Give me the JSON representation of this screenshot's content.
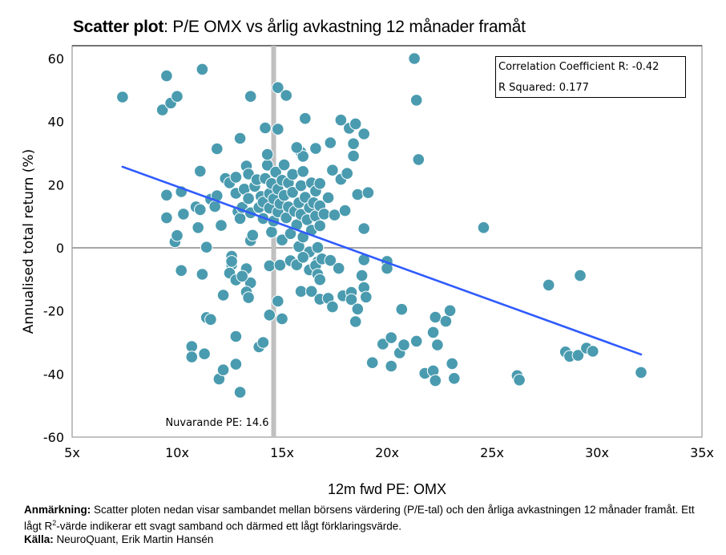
{
  "title": {
    "bold": "Scatter plot",
    "rest": ": P/E OMX vs årlig avkastning 12 månader framåt"
  },
  "stats_box": {
    "line1": "Correlation Coefficient R: -0.42",
    "line2": "R Squared: 0.177"
  },
  "notes": {
    "remark_label": "Anmärkning:",
    "remark_text_a": " Scatter ploten nedan visar sambandet mellan börsens värdering (P/E-tal) och den årliga avkastningen 12 månader framåt. Ett lågt R",
    "remark_sup": "2",
    "remark_text_b": "-värde indikerar ett svagt samband och därmed ett lågt förklaringsvärde.",
    "source_label": "Källa:",
    "source_text": " NeuroQuant, Erik Martin Hansén"
  },
  "colors": {
    "points": "#4A9BAF",
    "trendline": "#2F5BFF",
    "current_pe_line": "#C0C0C0",
    "zero_line": "#A6A6A6",
    "frame": "#A0A0A0"
  },
  "chart_data": {
    "type": "scatter",
    "title": "Scatter plot: P/E OMX vs årlig avkastning 12 månader framåt",
    "xlabel": "12m fwd PE: OMX",
    "ylabel": "Annualised total return (%)",
    "xlim": [
      5,
      35
    ],
    "ylim": [
      -60,
      60
    ],
    "x_ticks": [
      5,
      10,
      15,
      20,
      25,
      30,
      35
    ],
    "x_tick_labels": [
      "5x",
      "10x",
      "15x",
      "20x",
      "25x",
      "30x",
      "35x"
    ],
    "y_ticks": [
      60,
      40,
      20,
      0,
      -20,
      -40,
      -60
    ],
    "y_tick_labels": [
      "60",
      "40",
      "20",
      "0",
      "-20",
      "-40",
      "-60"
    ],
    "grid": false,
    "legend": "none",
    "correlation_r": -0.42,
    "r_squared": 0.177,
    "reference_line": {
      "x": 14.6,
      "label": "Nuvarande PE: 14.6"
    },
    "zero_line": {
      "y": 0
    },
    "trendline": {
      "x": [
        7.4,
        32.1
      ],
      "y": [
        25.7,
        -33.8
      ]
    },
    "points": [
      [
        7.4,
        47.8
      ],
      [
        9.3,
        43.7
      ],
      [
        9.5,
        54.5
      ],
      [
        9.7,
        45.9
      ],
      [
        10.0,
        48.0
      ],
      [
        11.2,
        56.6
      ],
      [
        13.5,
        48.0
      ],
      [
        14.8,
        50.8
      ],
      [
        15.2,
        48.3
      ],
      [
        16.1,
        41.0
      ],
      [
        17.8,
        40.5
      ],
      [
        18.2,
        37.9
      ],
      [
        18.5,
        39.3
      ],
      [
        18.9,
        36.1
      ],
      [
        18.4,
        33.0
      ],
      [
        17.3,
        33.3
      ],
      [
        16.6,
        31.5
      ],
      [
        15.9,
        30.3
      ],
      [
        16.0,
        29.0
      ],
      [
        15.7,
        31.8
      ],
      [
        14.2,
        38.0
      ],
      [
        14.8,
        37.6
      ],
      [
        13.0,
        34.7
      ],
      [
        11.9,
        31.4
      ],
      [
        9.5,
        16.7
      ],
      [
        9.5,
        9.5
      ],
      [
        9.9,
        1.9
      ],
      [
        10.0,
        3.9
      ],
      [
        10.3,
        10.7
      ],
      [
        10.2,
        17.8
      ],
      [
        10.2,
        -7.2
      ],
      [
        10.9,
        13.0
      ],
      [
        11.0,
        6.4
      ],
      [
        11.1,
        12.1
      ],
      [
        11.1,
        24.3
      ],
      [
        11.2,
        -8.4
      ],
      [
        11.4,
        0.2
      ],
      [
        11.6,
        15.4
      ],
      [
        11.8,
        13.1
      ],
      [
        11.9,
        16.5
      ],
      [
        12.1,
        7.1
      ],
      [
        12.3,
        22.0
      ],
      [
        12.5,
        20.6
      ],
      [
        12.6,
        -2.7
      ],
      [
        12.6,
        -5.4
      ],
      [
        12.8,
        22.4
      ],
      [
        12.8,
        17.3
      ],
      [
        12.9,
        11.5
      ],
      [
        13.0,
        9.3
      ],
      [
        13.1,
        12.8
      ],
      [
        13.2,
        18.6
      ],
      [
        13.3,
        25.9
      ],
      [
        13.4,
        23.4
      ],
      [
        13.4,
        15.6
      ],
      [
        13.5,
        2.3
      ],
      [
        13.5,
        11.1
      ],
      [
        13.6,
        4.0
      ],
      [
        13.7,
        19.5
      ],
      [
        13.8,
        21.6
      ],
      [
        13.9,
        12.8
      ],
      [
        14.0,
        16.3
      ],
      [
        14.1,
        14.5
      ],
      [
        14.1,
        9.3
      ],
      [
        14.2,
        22.0
      ],
      [
        14.3,
        26.2
      ],
      [
        14.3,
        29.6
      ],
      [
        14.4,
        17.2
      ],
      [
        14.4,
        12.6
      ],
      [
        14.5,
        20.4
      ],
      [
        14.5,
        5.0
      ],
      [
        14.6,
        15.5
      ],
      [
        14.6,
        8.5
      ],
      [
        14.7,
        24.0
      ],
      [
        14.8,
        18.6
      ],
      [
        14.8,
        11.4
      ],
      [
        14.9,
        14.0
      ],
      [
        15.0,
        21.4
      ],
      [
        15.0,
        2.5
      ],
      [
        15.1,
        26.3
      ],
      [
        15.1,
        16.6
      ],
      [
        15.2,
        9.5
      ],
      [
        15.3,
        13.0
      ],
      [
        15.3,
        20.6
      ],
      [
        15.4,
        4.5
      ],
      [
        15.5,
        23.3
      ],
      [
        15.5,
        17.6
      ],
      [
        15.6,
        11.6
      ],
      [
        15.7,
        7.3
      ],
      [
        15.8,
        14.3
      ],
      [
        15.8,
        0.4
      ],
      [
        15.9,
        19.7
      ],
      [
        15.9,
        10.6
      ],
      [
        16.0,
        24.2
      ],
      [
        16.0,
        3.4
      ],
      [
        16.1,
        16.0
      ],
      [
        16.2,
        8.9
      ],
      [
        16.3,
        12.7
      ],
      [
        16.3,
        -1.3
      ],
      [
        16.4,
        20.6
      ],
      [
        16.4,
        5.6
      ],
      [
        16.5,
        14.3
      ],
      [
        16.6,
        18.0
      ],
      [
        16.6,
        10.1
      ],
      [
        16.7,
        -4.4
      ],
      [
        16.7,
        0.1
      ],
      [
        16.8,
        20.4
      ],
      [
        16.8,
        13.3
      ],
      [
        16.8,
        7.0
      ],
      [
        17.0,
        10.7
      ],
      [
        17.2,
        15.9
      ],
      [
        17.4,
        24.6
      ],
      [
        17.5,
        10.4
      ],
      [
        17.8,
        21.7
      ],
      [
        18.0,
        11.8
      ],
      [
        18.1,
        23.6
      ],
      [
        18.4,
        29.1
      ],
      [
        18.6,
        16.9
      ],
      [
        18.9,
        6.1
      ],
      [
        19.1,
        17.5
      ],
      [
        13.3,
        -6.6
      ],
      [
        13.5,
        -11.1
      ],
      [
        12.5,
        -8.0
      ],
      [
        12.8,
        -10.2
      ],
      [
        13.1,
        -9.0
      ],
      [
        12.6,
        -4.3
      ],
      [
        13.3,
        -14.0
      ],
      [
        13.4,
        -15.8
      ],
      [
        12.2,
        -15.0
      ],
      [
        11.4,
        -22.1
      ],
      [
        11.6,
        -22.7
      ],
      [
        12.8,
        -28.1
      ],
      [
        13.9,
        -31.4
      ],
      [
        14.1,
        -30.0
      ],
      [
        14.4,
        -21.3
      ],
      [
        14.8,
        -16.9
      ],
      [
        15.0,
        -22.5
      ],
      [
        14.4,
        -5.7
      ],
      [
        14.9,
        -5.5
      ],
      [
        15.4,
        -4.1
      ],
      [
        15.7,
        -5.4
      ],
      [
        16.0,
        -3.0
      ],
      [
        16.3,
        -7.0
      ],
      [
        16.6,
        -5.6
      ],
      [
        16.7,
        -8.4
      ],
      [
        16.8,
        -10.1
      ],
      [
        16.9,
        -3.5
      ],
      [
        17.3,
        -4.0
      ],
      [
        17.7,
        -6.5
      ],
      [
        15.9,
        -13.8
      ],
      [
        16.4,
        -13.8
      ],
      [
        16.8,
        -16.3
      ],
      [
        17.2,
        -16.0
      ],
      [
        17.4,
        -18.7
      ],
      [
        17.9,
        -15.2
      ],
      [
        18.3,
        -14.1
      ],
      [
        18.3,
        -16.4
      ],
      [
        18.6,
        -19.4
      ],
      [
        18.9,
        -12.6
      ],
      [
        19.0,
        -15.6
      ],
      [
        18.8,
        -8.8
      ],
      [
        18.9,
        -3.8
      ],
      [
        20.0,
        -4.3
      ],
      [
        20.0,
        -6.5
      ],
      [
        20.7,
        -19.5
      ],
      [
        18.5,
        -23.4
      ],
      [
        10.7,
        -31.3
      ],
      [
        10.7,
        -34.6
      ],
      [
        11.3,
        -33.6
      ],
      [
        12.0,
        -41.6
      ],
      [
        12.2,
        -38.7
      ],
      [
        12.8,
        -36.9
      ],
      [
        13.0,
        -45.8
      ],
      [
        19.3,
        -36.4
      ],
      [
        19.8,
        -30.5
      ],
      [
        20.2,
        -28.5
      ],
      [
        20.2,
        -37.5
      ],
      [
        20.6,
        -33.3
      ],
      [
        20.8,
        -30.8
      ],
      [
        21.4,
        -29.6
      ],
      [
        21.8,
        -39.8
      ],
      [
        22.2,
        -26.8
      ],
      [
        22.3,
        -22.0
      ],
      [
        22.4,
        -30.8
      ],
      [
        22.2,
        -39.0
      ],
      [
        22.3,
        -42.1
      ],
      [
        22.8,
        -23.3
      ],
      [
        23.0,
        -19.9
      ],
      [
        23.1,
        -36.7
      ],
      [
        23.2,
        -41.4
      ],
      [
        21.3,
        60.0
      ],
      [
        21.4,
        46.8
      ],
      [
        21.5,
        28.0
      ],
      [
        24.6,
        6.4
      ],
      [
        26.2,
        -40.5
      ],
      [
        26.3,
        -41.9
      ],
      [
        27.7,
        -11.8
      ],
      [
        28.5,
        -33.0
      ],
      [
        28.7,
        -34.4
      ],
      [
        29.1,
        -34.1
      ],
      [
        29.2,
        -8.8
      ],
      [
        29.5,
        -31.8
      ],
      [
        29.8,
        -32.8
      ],
      [
        32.1,
        -39.5
      ]
    ]
  }
}
